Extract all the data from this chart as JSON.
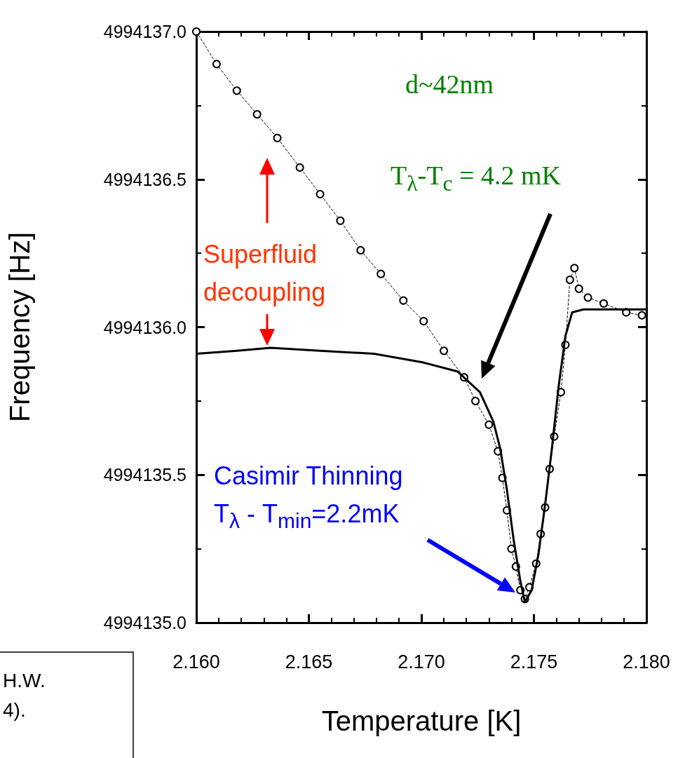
{
  "chart_data": {
    "type": "line",
    "xlabel": "Temperature [K]",
    "ylabel": "Frequency [Hz]",
    "xlim": [
      2.16,
      2.18
    ],
    "xticks": [
      {
        "value": 2.16,
        "label": "2.160"
      },
      {
        "value": 2.165,
        "label": "2.165"
      },
      {
        "value": 2.17,
        "label": "2.170"
      },
      {
        "value": 2.175,
        "label": "2.175"
      },
      {
        "value": 2.18,
        "label": "2.180"
      }
    ],
    "ylim": [
      4994135,
      4994137
    ],
    "yticks": [
      {
        "value": 4994135,
        "label": "4994135.0"
      },
      {
        "value": 4994135.5,
        "label": "4994135.5"
      },
      {
        "value": 4994136,
        "label": "4994136.0"
      },
      {
        "value": 4994136.5,
        "label": "4994136.5"
      },
      {
        "value": 4994137,
        "label": "4994137.0"
      }
    ],
    "grid": false,
    "series": [
      {
        "color": "#000000",
        "marker": "circle",
        "line_style": "dashed",
        "x": [
          2.16,
          2.1609,
          2.1618,
          2.1627,
          2.1636,
          2.1646,
          2.1655,
          2.1664,
          2.1673,
          2.1682,
          2.1692,
          2.1701,
          2.171,
          2.1719,
          2.1724,
          2.173,
          2.1734,
          2.1736,
          2.1738,
          2.174,
          2.1742,
          2.1744,
          2.1746,
          2.1748,
          2.1751,
          2.1753,
          2.1755,
          2.1757,
          2.1759,
          2.1762,
          2.1764,
          2.1766,
          2.1768,
          2.177,
          2.1774,
          2.1781,
          2.1791,
          2.1798
        ],
        "values": [
          4994137.0,
          4994136.89,
          4994136.8,
          4994136.72,
          4994136.64,
          4994136.54,
          4994136.45,
          4994136.36,
          4994136.26,
          4994136.18,
          4994136.09,
          4994136.02,
          4994135.92,
          4994135.83,
          4994135.75,
          4994135.67,
          4994135.58,
          4994135.49,
          4994135.38,
          4994135.25,
          4994135.19,
          4994135.11,
          4994135.08,
          4994135.12,
          4994135.2,
          4994135.3,
          4994135.39,
          4994135.52,
          4994135.63,
          4994135.78,
          4994135.94,
          4994136.16,
          4994136.2,
          4994136.13,
          4994136.1,
          4994136.08,
          4994136.05,
          4994136.04
        ]
      },
      {
        "color": "#000000",
        "marker": "none",
        "line_style": "solid",
        "x": [
          2.16,
          2.1618,
          2.1633,
          2.1655,
          2.1679,
          2.1701,
          2.1716,
          2.1726,
          2.1732,
          2.1735,
          2.1738,
          2.1741,
          2.1744,
          2.1746,
          2.1749,
          2.1752,
          2.1755,
          2.1758,
          2.1761,
          2.1764,
          2.1767,
          2.1772,
          2.18
        ],
        "values": [
          4994135.91,
          4994135.92,
          4994135.93,
          4994135.92,
          4994135.91,
          4994135.88,
          4994135.85,
          4994135.78,
          4994135.68,
          4994135.59,
          4994135.45,
          4994135.28,
          4994135.14,
          4994135.07,
          4994135.11,
          4994135.23,
          4994135.4,
          4994135.59,
          4994135.8,
          4994135.97,
          4994136.05,
          4994136.06,
          4994136.06
        ]
      }
    ],
    "annotations": [
      "d~42nm",
      "T$_{λ}$-T$_{c}$ = 4.2 mK",
      "Superfluid\ndecoupling",
      "Casimir Thinning\nT$_{λ}$ - T$_{min}$=2.2mK",
      "H.W.\n4)."
    ]
  }
}
